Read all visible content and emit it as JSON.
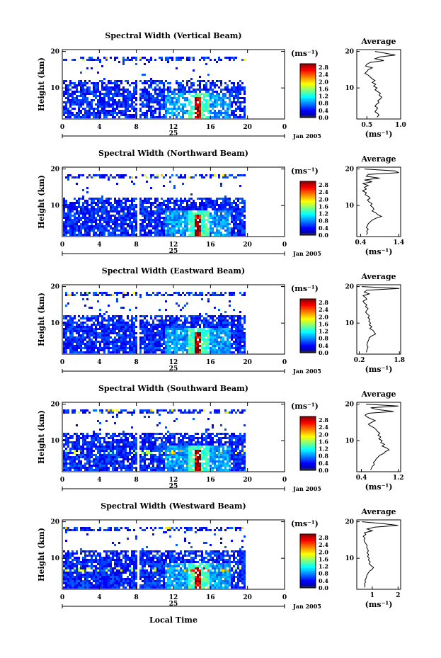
{
  "chart_data": [
    {
      "type": "heatmap",
      "title": "Spectral Width (Vertical Beam)",
      "ylabel": "Height (km)",
      "x_ticks": [
        "0",
        "4",
        "8",
        "12",
        "16",
        "20",
        "0"
      ],
      "y_ticks": [
        "20",
        "10"
      ],
      "xlim": [
        0,
        24
      ],
      "ylim": [
        1.5,
        20.5
      ],
      "day_label": "25",
      "month_label": "Jan 2005",
      "gap_hours": [
        7.9,
        8.2
      ],
      "colorbar": {
        "unit_label": "(ms⁻¹)",
        "ticks": [
          "2.8",
          "2.4",
          "2.0",
          "1.6",
          "1.2",
          "0.8",
          "0.4",
          "0.0"
        ],
        "range": [
          0,
          3.0
        ]
      },
      "average_profile": {
        "title": "Average",
        "xlabel": "(ms⁻¹)",
        "x_ticks": [
          "0.5",
          "1.0"
        ],
        "xlim": [
          0.35,
          1.0
        ],
        "y_ticks": [
          "20",
          "10"
        ],
        "heights": [
          20,
          19.5,
          19,
          18.5,
          18,
          17.5,
          17,
          16.5,
          16,
          15.5,
          15,
          14.5,
          14,
          13.5,
          13,
          12.5,
          12,
          11.5,
          11,
          10.5,
          10,
          9.5,
          9,
          8.5,
          8,
          7.5,
          7,
          6.5,
          6,
          5.5,
          5,
          4.5,
          4,
          3.5,
          3,
          2.5,
          2
        ],
        "values": [
          0.62,
          0.78,
          0.92,
          0.7,
          0.62,
          0.75,
          0.55,
          0.5,
          0.48,
          0.58,
          0.52,
          0.5,
          0.47,
          0.52,
          0.55,
          0.58,
          0.62,
          0.58,
          0.63,
          0.6,
          0.65,
          0.62,
          0.66,
          0.7,
          0.68,
          0.72,
          0.7,
          0.66,
          0.68,
          0.64,
          0.62,
          0.66,
          0.64,
          0.62,
          0.66,
          0.68,
          0.65
        ]
      }
    },
    {
      "type": "heatmap",
      "title": "Spectral Width (Northward Beam)",
      "ylabel": "Height (km)",
      "x_ticks": [
        "0",
        "4",
        "8",
        "12",
        "16",
        "20",
        "0"
      ],
      "y_ticks": [
        "20",
        "10"
      ],
      "xlim": [
        0,
        24
      ],
      "ylim": [
        1.5,
        20.5
      ],
      "day_label": "25",
      "month_label": "Jan 2005",
      "gap_hours": [
        7.9,
        8.2
      ],
      "colorbar": {
        "unit_label": "(ms⁻¹)",
        "ticks": [
          "2.8",
          "2.4",
          "2.0",
          "1.6",
          "1.2",
          "0.8",
          "0.4",
          "0.0"
        ],
        "range": [
          0,
          3.0
        ]
      },
      "average_profile": {
        "title": "Average",
        "xlabel": "(ms⁻¹)",
        "x_ticks": [
          "0.4",
          "1.4"
        ],
        "xlim": [
          0.3,
          1.45
        ],
        "y_ticks": [
          "20",
          "10"
        ],
        "heights": [
          20,
          19.5,
          19,
          18.5,
          18,
          17.5,
          17,
          16.5,
          16,
          15.5,
          15,
          14.5,
          14,
          13.5,
          13,
          12.5,
          12,
          11.5,
          11,
          10.5,
          10,
          9.5,
          9,
          8.5,
          8,
          7.5,
          7,
          6.5,
          6,
          5.5,
          5,
          4.5,
          4,
          3.5,
          3,
          2.5,
          2
        ],
        "values": [
          0.5,
          1.3,
          1.4,
          0.6,
          0.55,
          0.9,
          0.5,
          0.7,
          0.45,
          0.6,
          0.5,
          0.55,
          0.45,
          0.55,
          0.52,
          0.6,
          0.65,
          0.58,
          0.62,
          0.7,
          0.66,
          0.72,
          0.75,
          0.7,
          0.8,
          0.85,
          0.95,
          0.8,
          0.7,
          0.65,
          0.6,
          0.58,
          0.55,
          0.6,
          0.56,
          0.58,
          0.55
        ]
      }
    },
    {
      "type": "heatmap",
      "title": "Spectral Width (Eastward Beam)",
      "ylabel": "Height (km)",
      "x_ticks": [
        "0",
        "4",
        "8",
        "12",
        "16",
        "20",
        "0"
      ],
      "y_ticks": [
        "20",
        "10"
      ],
      "xlim": [
        0,
        24
      ],
      "ylim": [
        1.5,
        20.5
      ],
      "day_label": "25",
      "month_label": "Jan 2005",
      "gap_hours": [
        7.9,
        8.2
      ],
      "colorbar": {
        "unit_label": "(ms⁻¹)",
        "ticks": [
          "2.8",
          "2.4",
          "2.0",
          "1.6",
          "1.2",
          "0.8",
          "0.4",
          "0.0"
        ],
        "range": [
          0,
          3.0
        ]
      },
      "average_profile": {
        "title": "Average",
        "xlabel": "(ms⁻¹)",
        "x_ticks": [
          "0.2",
          "1.8"
        ],
        "xlim": [
          0.1,
          1.85
        ],
        "y_ticks": [
          "20",
          "10"
        ],
        "heights": [
          20,
          19.5,
          19,
          18.5,
          18,
          17.5,
          17,
          16.5,
          16,
          15.5,
          15,
          14.5,
          14,
          13.5,
          13,
          12.5,
          12,
          11.5,
          11,
          10.5,
          10,
          9.5,
          9,
          8.5,
          8,
          7.5,
          7,
          6.5,
          6,
          5.5,
          5,
          4.5,
          4,
          3.5,
          3,
          2.5,
          2
        ],
        "values": [
          0.3,
          1.8,
          0.5,
          0.4,
          0.6,
          0.35,
          0.45,
          0.5,
          0.35,
          0.4,
          0.5,
          0.45,
          0.55,
          0.5,
          0.45,
          0.52,
          0.6,
          0.55,
          0.62,
          0.58,
          0.65,
          0.6,
          0.7,
          0.62,
          0.75,
          0.8,
          0.85,
          0.7,
          0.6,
          0.58,
          0.55,
          0.52,
          0.5,
          0.55,
          0.52,
          0.5,
          0.48
        ]
      }
    },
    {
      "type": "heatmap",
      "title": "Spectral Width (Southward Beam)",
      "ylabel": "Height (km)",
      "x_ticks": [
        "0",
        "4",
        "8",
        "12",
        "16",
        "20",
        "0"
      ],
      "y_ticks": [
        "20",
        "10"
      ],
      "xlim": [
        0,
        24
      ],
      "ylim": [
        1.5,
        20.5
      ],
      "day_label": "25",
      "month_label": "Jan 2005",
      "gap_hours": [
        7.9,
        8.2
      ],
      "colorbar": {
        "unit_label": "(ms⁻¹)",
        "ticks": [
          "2.8",
          "2.4",
          "2.0",
          "1.6",
          "1.2",
          "0.8",
          "0.4",
          "0.0"
        ],
        "range": [
          0,
          3.0
        ]
      },
      "average_profile": {
        "title": "Average",
        "xlabel": "(ms⁻¹)",
        "x_ticks": [
          "0.4",
          "1.2"
        ],
        "xlim": [
          0.3,
          1.25
        ],
        "y_ticks": [
          "20",
          "10"
        ],
        "heights": [
          20,
          19.5,
          19,
          18.5,
          18,
          17.5,
          17,
          16.5,
          16,
          15.5,
          15,
          14.5,
          14,
          13.5,
          13,
          12.5,
          12,
          11.5,
          11,
          10.5,
          10,
          9.5,
          9,
          8.5,
          8,
          7.5,
          7,
          6.5,
          6,
          5.5,
          5,
          4.5,
          4,
          3.5,
          3,
          2.5,
          2
        ],
        "values": [
          0.5,
          1.2,
          0.6,
          0.75,
          1.1,
          0.55,
          0.48,
          0.52,
          0.6,
          0.7,
          0.62,
          0.55,
          0.6,
          0.68,
          0.72,
          0.75,
          0.8,
          0.76,
          0.82,
          0.78,
          0.85,
          0.82,
          0.9,
          0.85,
          0.95,
          1.0,
          0.92,
          0.88,
          0.8,
          0.76,
          0.72,
          0.7,
          0.66,
          0.68,
          0.64,
          0.62,
          0.6
        ]
      }
    },
    {
      "type": "heatmap",
      "title": "Spectral Width (Westward Beam)",
      "ylabel": "Height (km)",
      "x_ticks": [
        "0",
        "4",
        "8",
        "12",
        "16",
        "20",
        "0"
      ],
      "y_ticks": [
        "20",
        "10"
      ],
      "xlim": [
        0,
        24
      ],
      "ylim": [
        1.5,
        20.5
      ],
      "day_label": "25",
      "month_label": "Jan 2005",
      "gap_hours": [
        7.9,
        8.2
      ],
      "colorbar": {
        "unit_label": "(ms⁻¹)",
        "ticks": [
          "2.8",
          "2.4",
          "2.0",
          "1.6",
          "1.2",
          "0.8",
          "0.4",
          "0.0"
        ],
        "range": [
          0,
          3.0
        ]
      },
      "average_profile": {
        "title": "Average",
        "xlabel": "(ms⁻¹)",
        "x_ticks": [
          "1",
          "2"
        ],
        "xlim": [
          0.4,
          2.1
        ],
        "y_ticks": [
          "20",
          "10"
        ],
        "heights": [
          20,
          19.5,
          19,
          18.5,
          18,
          17.5,
          17,
          16.5,
          16,
          15.5,
          15,
          14.5,
          14,
          13.5,
          13,
          12.5,
          12,
          11.5,
          11,
          10.5,
          10,
          9.5,
          9,
          8.5,
          8,
          7.5,
          7,
          6.5,
          6,
          5.5,
          5,
          4.5,
          4,
          3.5,
          3,
          2.5,
          2
        ],
        "values": [
          0.6,
          1.4,
          2.0,
          1.1,
          0.8,
          1.0,
          0.7,
          0.75,
          0.65,
          0.72,
          0.68,
          0.7,
          0.75,
          0.8,
          0.78,
          0.82,
          0.85,
          0.8,
          0.86,
          0.82,
          0.88,
          0.85,
          0.92,
          0.88,
          0.95,
          1.05,
          1.0,
          0.9,
          0.85,
          0.8,
          0.78,
          0.76,
          0.72,
          0.74,
          0.7,
          0.72,
          0.7
        ]
      }
    }
  ],
  "page": {
    "xlabel": "Local Time"
  }
}
